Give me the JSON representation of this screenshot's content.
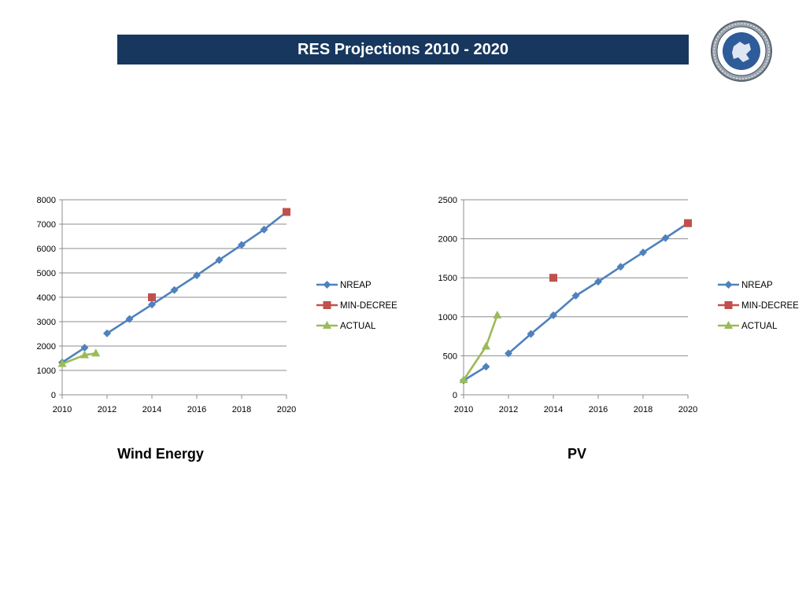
{
  "header": {
    "title": "RES Projections 2010 - 2020",
    "logo_icon": "circular-seal-logo-icon"
  },
  "colors": {
    "header_bg": "#17375e",
    "nreap": "#4f81bd",
    "min_decree": "#c0504d",
    "actual": "#9bbb59"
  },
  "chart_data": [
    {
      "type": "line",
      "title": "Wind Energy",
      "xlim": [
        2010,
        2020
      ],
      "ylim": [
        0,
        8000
      ],
      "xticks": [
        2010,
        2012,
        2014,
        2016,
        2018,
        2020
      ],
      "yticks": [
        0,
        1000,
        2000,
        3000,
        4000,
        5000,
        6000,
        7000,
        8000
      ],
      "grid": true,
      "legend": "right",
      "series": [
        {
          "name": "NREAP",
          "marker": "diamond",
          "color": "#4f81bd",
          "points": [
            [
              2010,
              1327
            ],
            [
              2011,
              1930
            ],
            [
              2012,
              2520
            ],
            [
              2013,
              3110
            ],
            [
              2014,
              3700
            ],
            [
              2015,
              4300
            ],
            [
              2016,
              4900
            ],
            [
              2017,
              5530
            ],
            [
              2018,
              6150
            ],
            [
              2019,
              6780
            ],
            [
              2020,
              7500
            ]
          ],
          "segments": [
            [
              0,
              1
            ],
            [
              2,
              10
            ]
          ]
        },
        {
          "name": "MIN-DECREE",
          "marker": "square",
          "color": "#c0504d",
          "points": [
            [
              2014,
              4000
            ],
            [
              2020,
              7500
            ]
          ],
          "segments": []
        },
        {
          "name": "ACTUAL",
          "marker": "triangle",
          "color": "#9bbb59",
          "points": [
            [
              2010,
              1270
            ],
            [
              2011,
              1630
            ],
            [
              2011.5,
              1700
            ]
          ],
          "segments": [
            [
              0,
              2
            ]
          ]
        }
      ]
    },
    {
      "type": "line",
      "title": "PV",
      "xlim": [
        2010,
        2020
      ],
      "ylim": [
        0,
        2500
      ],
      "xticks": [
        2010,
        2012,
        2014,
        2016,
        2018,
        2020
      ],
      "yticks": [
        0,
        500,
        1000,
        1500,
        2000,
        2500
      ],
      "grid": true,
      "legend": "right",
      "series": [
        {
          "name": "NREAP",
          "marker": "diamond",
          "color": "#4f81bd",
          "points": [
            [
              2010,
              184
            ],
            [
              2011,
              360
            ],
            [
              2012,
              530
            ],
            [
              2013,
              780
            ],
            [
              2014,
              1020
            ],
            [
              2015,
              1270
            ],
            [
              2016,
              1450
            ],
            [
              2017,
              1640
            ],
            [
              2018,
              1825
            ],
            [
              2019,
              2010
            ],
            [
              2020,
              2200
            ]
          ],
          "segments": [
            [
              0,
              1
            ],
            [
              2,
              10
            ]
          ]
        },
        {
          "name": "MIN-DECREE",
          "marker": "square",
          "color": "#c0504d",
          "points": [
            [
              2014,
              1500
            ],
            [
              2020,
              2200
            ]
          ],
          "segments": []
        },
        {
          "name": "ACTUAL",
          "marker": "triangle",
          "color": "#9bbb59",
          "points": [
            [
              2010,
              190
            ],
            [
              2011,
              620
            ],
            [
              2011.5,
              1020
            ]
          ],
          "segments": [
            [
              0,
              2
            ]
          ]
        }
      ]
    }
  ]
}
